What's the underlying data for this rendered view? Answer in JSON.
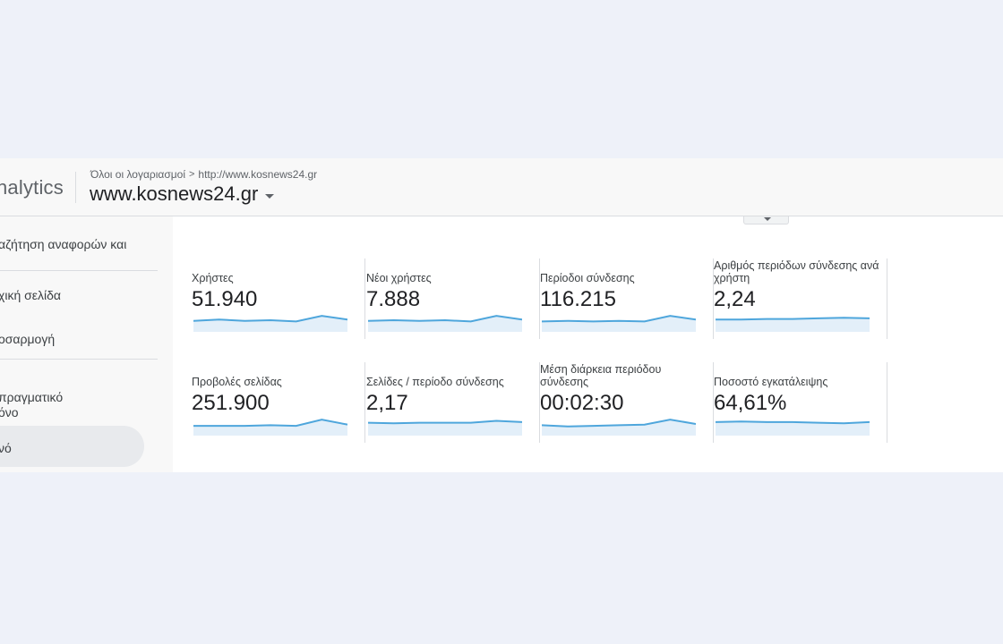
{
  "header": {
    "brand": "nalytics",
    "breadcrumb": {
      "root": "Όλοι οι λογαριασμοί",
      "separator": ">",
      "account": "http://www.kosnews24.gr"
    },
    "property": "www.kosnews24.gr"
  },
  "sidebar": {
    "items": [
      {
        "label": "αζήτηση αναφορών και"
      },
      {
        "label": "χική σελίδα"
      },
      {
        "label": "οσαρμογή"
      },
      {
        "label": "πραγματικό"
      },
      {
        "label": "όνο"
      },
      {
        "label": "νό"
      }
    ]
  },
  "colors": {
    "accent": "#4ea6dc",
    "fill": "#e3eff9"
  },
  "metrics": [
    {
      "label": "Χρήστες",
      "value": "51.940",
      "trend": [
        0.55,
        0.45,
        0.55,
        0.5,
        0.6,
        0.15,
        0.45
      ]
    },
    {
      "label": "Νέοι χρήστες",
      "value": "7.888",
      "trend": [
        0.55,
        0.5,
        0.55,
        0.5,
        0.6,
        0.15,
        0.45
      ]
    },
    {
      "label": "Περίοδοι σύνδεσης",
      "value": "116.215",
      "trend": [
        0.6,
        0.55,
        0.6,
        0.55,
        0.6,
        0.15,
        0.45
      ]
    },
    {
      "label": "Αριθμός περιόδων σύνδεσης ανά χρήστη",
      "value": "2,24",
      "trend": [
        0.45,
        0.45,
        0.4,
        0.4,
        0.35,
        0.3,
        0.35
      ]
    },
    {
      "label": "Προβολές σελίδας",
      "value": "251.900",
      "trend": [
        0.65,
        0.65,
        0.65,
        0.6,
        0.65,
        0.15,
        0.55
      ]
    },
    {
      "label": "Σελίδες / περίοδο σύνδεσης",
      "value": "2,17",
      "trend": [
        0.4,
        0.45,
        0.4,
        0.4,
        0.4,
        0.25,
        0.35
      ]
    },
    {
      "label": "Μέση διάρκεια περιόδου σύνδεσης",
      "value": "00:02:30",
      "trend": [
        0.6,
        0.7,
        0.65,
        0.6,
        0.55,
        0.15,
        0.5
      ]
    },
    {
      "label": "Ποσοστό εγκατάλειψης",
      "value": "64,61%",
      "trend": [
        0.35,
        0.3,
        0.35,
        0.35,
        0.4,
        0.45,
        0.35
      ]
    }
  ]
}
